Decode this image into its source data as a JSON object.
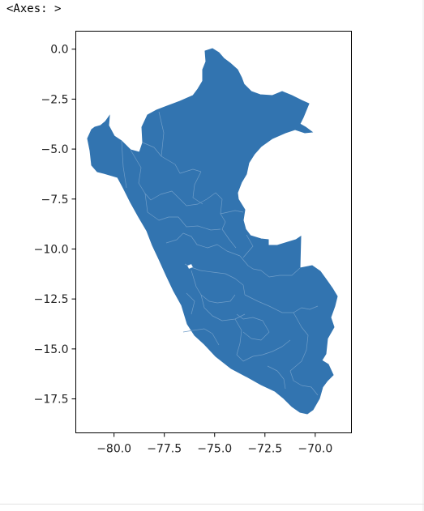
{
  "output_repr": "<Axes: >",
  "map": {
    "region": "Peru",
    "fill_color": "#3274b0",
    "border_color": "#6f9dc8",
    "frame_color": "#000000",
    "lon_range": [
      -81.9,
      -68.2
    ],
    "lat_range": [
      -19.2,
      0.9
    ],
    "xticks": [
      -80.0,
      -77.5,
      -75.0,
      -72.5,
      -70.0
    ],
    "xtick_labels": [
      "−80.0",
      "−77.5",
      "−75.0",
      "−72.5",
      "−70.0"
    ],
    "yticks": [
      0.0,
      -2.5,
      -5.0,
      -7.5,
      -10.0,
      -12.5,
      -15.0,
      -17.5
    ],
    "ytick_labels": [
      "0.0",
      "−2.5",
      "−5.0",
      "−7.5",
      "−10.0",
      "−12.5",
      "−15.0",
      "−17.5"
    ]
  },
  "chart_data": {
    "type": "map",
    "title": "",
    "xlabel": "",
    "ylabel": "",
    "xlim": [
      -81.9,
      -68.2
    ],
    "ylim": [
      -19.2,
      0.9
    ],
    "grid": false
  }
}
